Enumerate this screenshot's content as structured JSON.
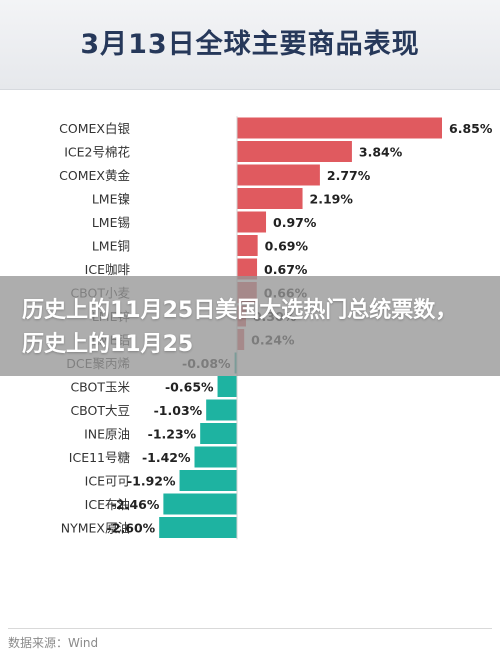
{
  "header": {
    "title": "3月13日全球主要商品表现"
  },
  "banner": {
    "text": "历史上的11月25日美国大选热门总统票数，历史上的11月25"
  },
  "footer": {
    "source": "数据来源：Wind"
  },
  "colors": {
    "positive": "#e05a5f",
    "negative": "#1eb3a1",
    "label": "#333333",
    "axis": "#d0d0d0"
  },
  "chart_data": {
    "type": "bar",
    "orientation": "horizontal",
    "title": "3月13日全球主要商品表现",
    "unit": "%",
    "categories": [
      "COMEX白银",
      "ICE2号棉花",
      "COMEX黄金",
      "LME镍",
      "LME锡",
      "LME铜",
      "ICE咖啡",
      "CBOT小麦",
      "LME锌",
      "LME铝",
      "DCE聚丙烯",
      "CBOT玉米",
      "CBOT大豆",
      "INE原油",
      "ICE11号糖",
      "ICE可可",
      "ICE布油",
      "NYMEX原油"
    ],
    "values": [
      6.85,
      3.84,
      2.77,
      2.19,
      0.97,
      0.69,
      0.67,
      0.66,
      0.3,
      0.24,
      -0.08,
      -0.65,
      -1.03,
      -1.23,
      -1.42,
      -1.92,
      -2.46,
      -2.6
    ],
    "value_labels": [
      "6.85%",
      "3.84%",
      "2.77%",
      "2.19%",
      "0.97%",
      "0.69%",
      "0.67%",
      "0.66%",
      "0.30%",
      "0.24%",
      "-0.08%",
      "-0.65%",
      "-1.03%",
      "-1.23%",
      "-1.42%",
      "-1.92%",
      "-2.46%",
      "-2.60%"
    ]
  }
}
